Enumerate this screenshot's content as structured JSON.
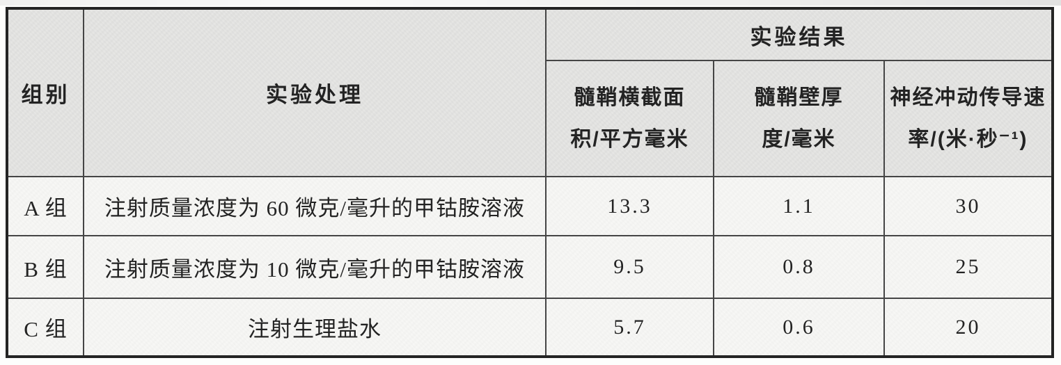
{
  "table": {
    "headers": {
      "group": "组别",
      "treatment": "实验处理",
      "results": "实验结果",
      "result_columns": [
        {
          "line1": "髓鞘横截面",
          "line2": "积/平方毫米"
        },
        {
          "line1": "髓鞘壁厚",
          "line2": "度/毫米"
        },
        {
          "line1": "神经冲动传导速",
          "line2": "率/(米·秒⁻¹)"
        }
      ]
    },
    "rows": [
      {
        "group": "A 组",
        "treatment": "注射质量浓度为 60 微克/毫升的甲钴胺溶液",
        "values": [
          "13.3",
          "1.1",
          "30"
        ]
      },
      {
        "group": "B 组",
        "treatment": "注射质量浓度为 10 微克/毫升的甲钴胺溶液",
        "values": [
          "9.5",
          "0.8",
          "25"
        ]
      },
      {
        "group": "C 组",
        "treatment": "注射生理盐水",
        "values": [
          "5.7",
          "0.6",
          "20"
        ]
      }
    ]
  },
  "colors": {
    "header_bg": "#e6e6e4",
    "body_bg": "#f7f7f5",
    "outer_border": "#242424",
    "inner_line": "#454545",
    "text": "#232323"
  }
}
